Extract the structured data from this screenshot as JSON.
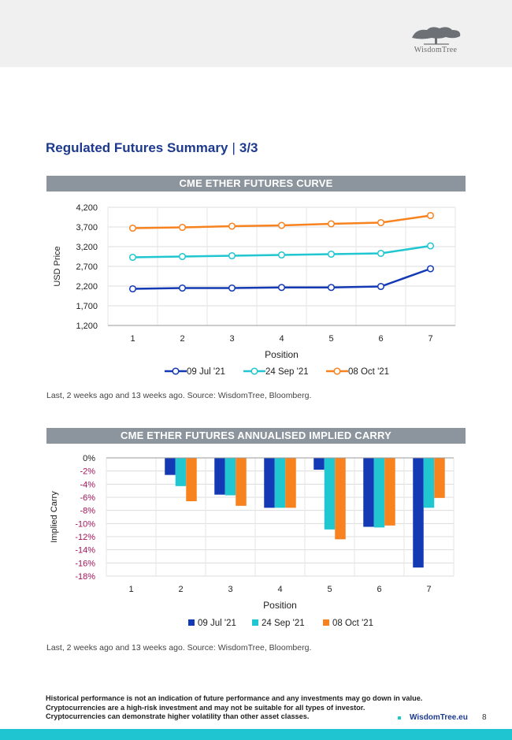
{
  "header": {
    "logo_text": "WisdomTree"
  },
  "page": {
    "title": "Regulated Futures Summary",
    "title_sep": "|",
    "title_part": "3/3"
  },
  "colors": {
    "series1": "#1339b4",
    "series2": "#20c6d0",
    "series3": "#f7821e",
    "accent": "#1fc6d2",
    "banner": "#8c959d"
  },
  "charts": [
    {
      "banner": "CME ETHER FUTURES CURVE",
      "source": "Last, 2 weeks ago and 13 weeks ago. Source: WisdomTree, Bloomberg."
    },
    {
      "banner": "CME ETHER FUTURES ANNUALISED IMPLIED CARRY",
      "source": "Last, 2 weeks ago and 13 weeks ago. Source: WisdomTree, Bloomberg."
    }
  ],
  "chart_data": [
    {
      "type": "line",
      "title": "CME ETHER FUTURES CURVE",
      "xlabel": "Position",
      "ylabel": "USD Price",
      "categories": [
        "1",
        "2",
        "3",
        "4",
        "5",
        "6",
        "7"
      ],
      "ylim": [
        1200,
        4200
      ],
      "yticks": [
        "4,200",
        "3,700",
        "3,200",
        "2,700",
        "2,200",
        "1,700",
        "1,200"
      ],
      "grid": true,
      "legend": "bottom",
      "series": [
        {
          "name": "09 Jul '21",
          "values": [
            2130,
            2150,
            2150,
            2165,
            2165,
            2190,
            2640
          ]
        },
        {
          "name": "24 Sep '21",
          "values": [
            2930,
            2950,
            2970,
            2990,
            3010,
            3030,
            3220
          ]
        },
        {
          "name": "08 Oct '21",
          "values": [
            3670,
            3690,
            3720,
            3740,
            3780,
            3810,
            3990
          ]
        }
      ]
    },
    {
      "type": "bar",
      "title": "CME ETHER FUTURES ANNUALISED IMPLIED CARRY",
      "xlabel": "Position",
      "ylabel": "Implied Carry",
      "categories": [
        "1",
        "2",
        "3",
        "4",
        "5",
        "6",
        "7"
      ],
      "ylim": [
        -18,
        0
      ],
      "yticks": [
        "0%",
        "-2%",
        "-4%",
        "-6%",
        "-8%",
        "-10%",
        "-12%",
        "-14%",
        "-16%",
        "-18%"
      ],
      "grid": true,
      "legend": "bottom",
      "series": [
        {
          "name": "09 Jul '21",
          "values": [
            0,
            -2.6,
            -5.6,
            -7.6,
            -1.8,
            -10.5,
            -16.7
          ]
        },
        {
          "name": "24 Sep '21",
          "values": [
            0,
            -4.3,
            -5.7,
            -7.6,
            -10.9,
            -10.6,
            -7.6
          ]
        },
        {
          "name": "08 Oct '21",
          "values": [
            0,
            -6.6,
            -7.3,
            -7.6,
            -12.4,
            -10.3,
            -6.1
          ]
        }
      ]
    }
  ],
  "footer": {
    "disclaimer_lines": [
      "Historical performance is not an indication of future performance and any investments may go down in value.",
      "Cryptocurrencies are a high-risk investment and may not be suitable for all types of investor.",
      "Cryptocurrencies can demonstrate higher volatility than other asset classes."
    ],
    "site": "WisdomTree.eu",
    "page_number": "8"
  }
}
